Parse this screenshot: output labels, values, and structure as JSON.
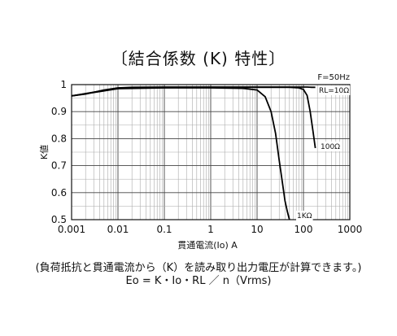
{
  "title": "〔結合係数 (K) 特性〕",
  "footnote": {
    "line1": "(負荷抵抗と貫通電流から（K）を読み取り出力電圧が計算できます。)",
    "line2": "Eo = K・Io・RL ／ n（Vrms)"
  },
  "chart_data": {
    "type": "line",
    "title": "〔結合係数 (K) 特性〕",
    "condition": "F=50Hz",
    "xlabel": "貫通電流(Io)  A",
    "ylabel": "K値",
    "xscale": "log",
    "xlim": [
      0.001,
      1000
    ],
    "ylim": [
      0.5,
      1
    ],
    "x_ticks": [
      "0.001",
      "0.01",
      "0.1",
      "1",
      "10",
      "100",
      "1000"
    ],
    "y_ticks": [
      "0.5",
      "0.6",
      "0.7",
      "0.8",
      "0.9",
      "1"
    ],
    "grid": true,
    "series": [
      {
        "name": "RL=10Ω",
        "x": [
          0.001,
          0.002,
          0.005,
          0.01,
          0.02,
          0.1,
          1,
          10,
          50,
          100,
          120,
          150,
          180
        ],
        "y": [
          0.958,
          0.965,
          0.98,
          0.988,
          0.99,
          0.991,
          0.991,
          0.991,
          0.991,
          0.991,
          0.991,
          0.99,
          0.99
        ]
      },
      {
        "name": "100Ω",
        "x": [
          0.001,
          0.01,
          0.1,
          1,
          10,
          50,
          80,
          100,
          120,
          140,
          160,
          180
        ],
        "y": [
          0.958,
          0.987,
          0.989,
          0.99,
          0.99,
          0.99,
          0.988,
          0.982,
          0.96,
          0.9,
          0.83,
          0.765
        ]
      },
      {
        "name": "1KΩ",
        "x": [
          0.001,
          0.01,
          0.1,
          1,
          5,
          10,
          15,
          20,
          25,
          30,
          35,
          40,
          45,
          50
        ],
        "y": [
          0.958,
          0.985,
          0.988,
          0.988,
          0.986,
          0.98,
          0.955,
          0.9,
          0.82,
          0.72,
          0.64,
          0.57,
          0.53,
          0.5
        ]
      }
    ]
  }
}
